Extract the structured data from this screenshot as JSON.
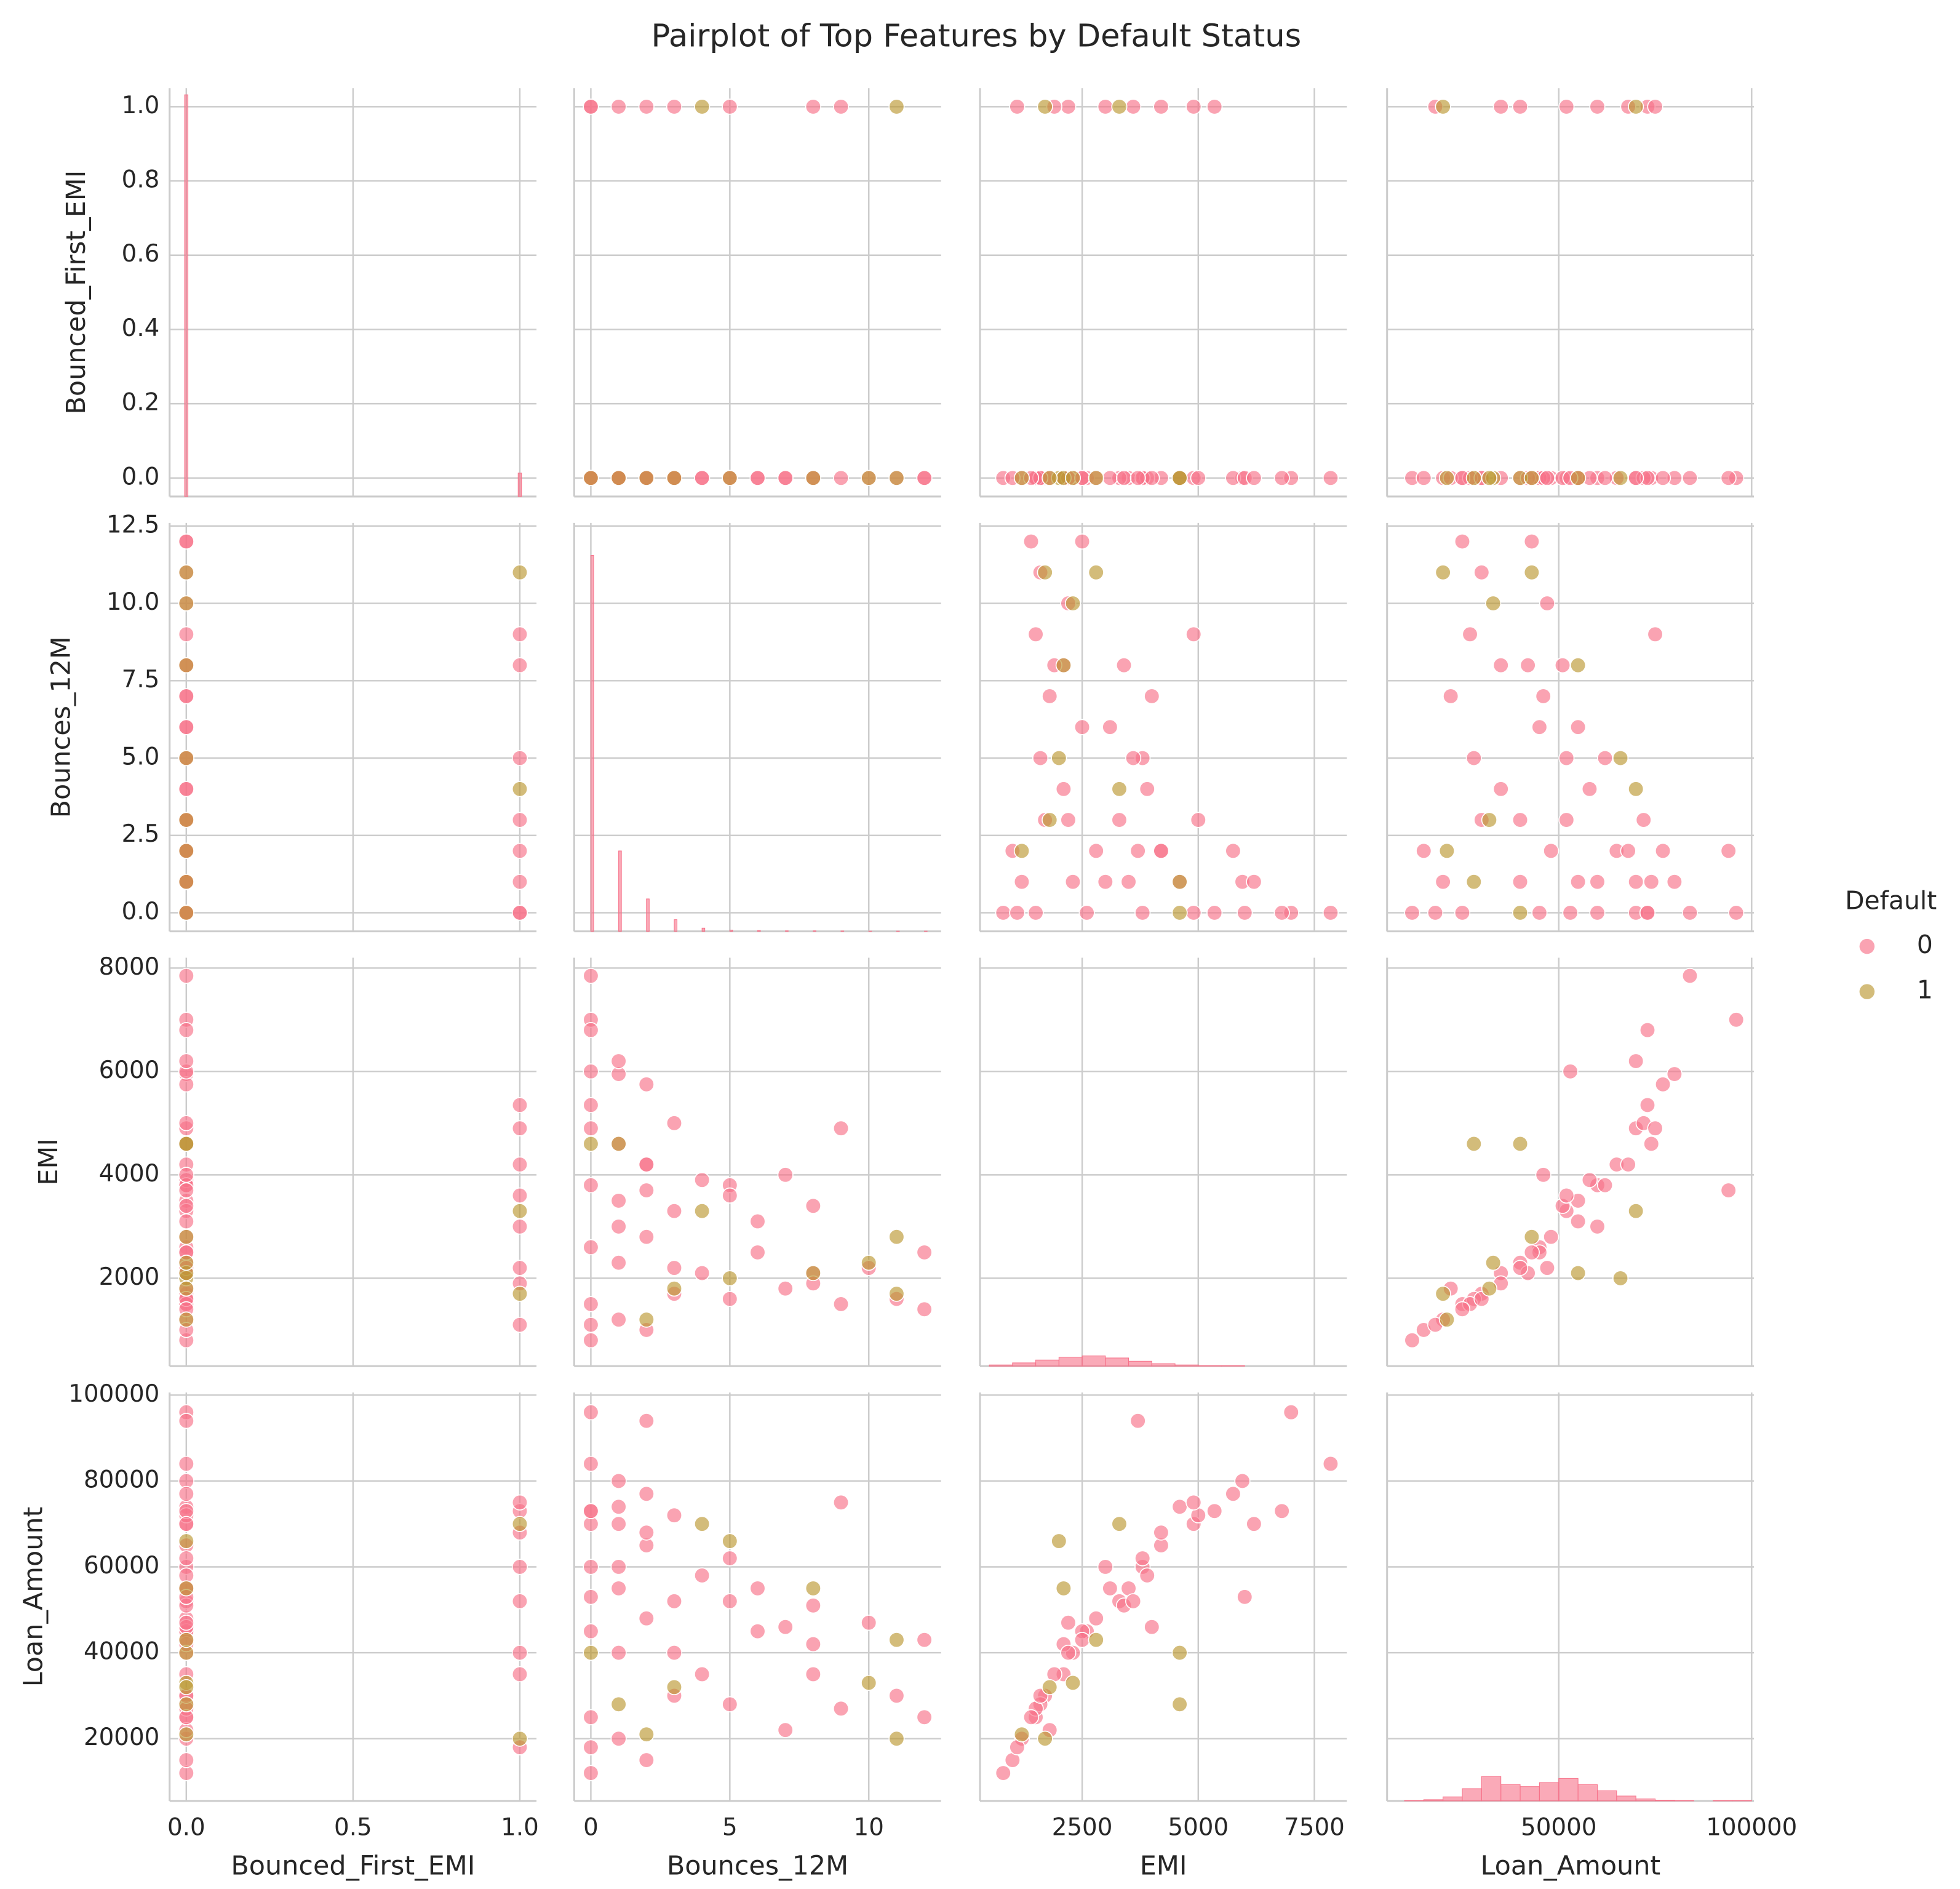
{
  "chart_data": {
    "type": "pairplot",
    "title": "Pairplot of Top Features by Default Status",
    "grid": true,
    "legend": {
      "title": "Default",
      "position": "right"
    },
    "variables": [
      {
        "name": "Bounced_First_EMI",
        "lim": [
          -0.05,
          1.05
        ],
        "xticks": [
          {
            "value": 0,
            "label": "0.0"
          },
          {
            "value": 0.5,
            "label": "0.5"
          },
          {
            "value": 1,
            "label": "1.0"
          }
        ],
        "yticks": [
          {
            "value": 0,
            "label": "0.0"
          },
          0.2,
          0.4,
          0.6,
          0.8,
          {
            "value": 1,
            "label": "1.0"
          }
        ]
      },
      {
        "name": "Bounces_12M",
        "lim": [
          -0.6,
          12.6
        ],
        "xticks": [
          0,
          5,
          10
        ],
        "yticks": [
          {
            "value": 0,
            "label": "0.0"
          },
          2.5,
          {
            "value": 5,
            "label": "5.0"
          },
          7.5,
          {
            "value": 10,
            "label": "10.0"
          },
          12.5
        ]
      },
      {
        "name": "EMI",
        "lim": [
          300,
          8200
        ],
        "xticks": [
          2500,
          5000,
          7500
        ],
        "yticks": [
          2000,
          4000,
          6000,
          8000
        ]
      },
      {
        "name": "Loan_Amount",
        "lim": [
          5500,
          100600
        ],
        "xticks": [
          50000,
          100000
        ],
        "yticks": [
          20000,
          40000,
          60000,
          80000,
          100000
        ]
      }
    ],
    "histograms": [
      {
        "bins": [
          -0.005,
          0.005,
          0.995,
          1.005
        ],
        "counts": [
          6000,
          0,
          350
        ],
        "ylim": [
          0,
          6100
        ]
      },
      {
        "bins": [
          0,
          0.1,
          1,
          1.1,
          2,
          2.1,
          3,
          3.1,
          4,
          4.1,
          5,
          5.1,
          6,
          6.1,
          7,
          7.1,
          8,
          8.1,
          9,
          9.1,
          10,
          10.1,
          11,
          11.1,
          12,
          12.1
        ],
        "counts": [
          2900,
          0,
          620,
          0,
          250,
          0,
          90,
          0,
          25,
          0,
          10,
          0,
          6,
          0,
          4,
          0,
          4,
          0,
          3,
          0,
          2,
          0,
          2,
          0,
          2
        ],
        "ylim": [
          0,
          3150
        ]
      },
      {
        "bins": [
          500,
          1000,
          1500,
          2000,
          2500,
          3000,
          3500,
          4000,
          4500,
          5000,
          5500,
          6000,
          6500,
          7000,
          7500,
          8000
        ],
        "counts": [
          3,
          8,
          15,
          22,
          25,
          20,
          12,
          6,
          3,
          1,
          1,
          0,
          0,
          0,
          0
        ],
        "ylim": [
          0,
          1000
        ]
      },
      {
        "bins": [
          10000,
          15000,
          20000,
          25000,
          30000,
          35000,
          40000,
          45000,
          50000,
          55000,
          60000,
          65000,
          70000,
          75000,
          80000,
          85000,
          90000,
          95000,
          100000
        ],
        "counts": [
          1,
          3,
          10,
          30,
          60,
          40,
          35,
          45,
          55,
          40,
          25,
          12,
          5,
          2,
          1,
          0,
          1,
          1
        ],
        "ylim": [
          0,
          1000
        ]
      }
    ],
    "series": [
      {
        "name": "0",
        "color": "#f77189",
        "values": [
          [
            0,
            0,
            0,
            0,
            0,
            0,
            0,
            0,
            0,
            0,
            0,
            0,
            0,
            0,
            0,
            0,
            0,
            0,
            0,
            0,
            0,
            0,
            0,
            0,
            0,
            0,
            0,
            0,
            0,
            0,
            0,
            0,
            0,
            0,
            1,
            1,
            1,
            1,
            1,
            1,
            1,
            1,
            0,
            0,
            0,
            0
          ],
          [
            0,
            0,
            0,
            0,
            0,
            0,
            0,
            1,
            1,
            1,
            1,
            1,
            2,
            2,
            2,
            2,
            3,
            3,
            3,
            4,
            4,
            5,
            5,
            6,
            6,
            7,
            7,
            8,
            8,
            9,
            10,
            11,
            12,
            12,
            0,
            0,
            1,
            2,
            3,
            5,
            8,
            9,
            0,
            0,
            1,
            2
          ],
          [
            800,
            1500,
            2600,
            3800,
            4900,
            7850,
            7000,
            1200,
            2300,
            3500,
            4600,
            5950,
            1000,
            2800,
            4200,
            5750,
            1700,
            3300,
            5000,
            2100,
            3900,
            1600,
            3800,
            2500,
            3100,
            1800,
            4000,
            2100,
            3400,
            1500,
            2200,
            1600,
            1400,
            2500,
            5350,
            1100,
            3000,
            4200,
            2200,
            3600,
            1900,
            4900,
            6800,
            6000,
            6200,
            3700
          ],
          [
            12000,
            25000,
            45000,
            60000,
            70000,
            84000,
            96000,
            20000,
            40000,
            55000,
            74000,
            80000,
            15000,
            48000,
            65000,
            77000,
            30000,
            52000,
            72000,
            35000,
            58000,
            28000,
            62000,
            45000,
            55000,
            22000,
            46000,
            42000,
            51000,
            27000,
            47000,
            30000,
            25000,
            43000,
            73000,
            18000,
            60000,
            68000,
            40000,
            52000,
            35000,
            75000,
            73000,
            53000,
            70000,
            94000
          ]
        ]
      },
      {
        "name": "1",
        "color": "#bb9832",
        "values": [
          [
            0,
            0,
            0,
            0,
            0,
            0,
            1,
            1,
            0,
            0
          ],
          [
            0,
            1,
            5,
            8,
            11,
            10,
            11,
            4,
            3,
            2
          ],
          [
            4600,
            4600,
            2000,
            2100,
            2800,
            2300,
            1700,
            3300,
            1800,
            1200
          ],
          [
            40000,
            28000,
            66000,
            55000,
            43000,
            33000,
            20000,
            70000,
            32000,
            21000
          ]
        ]
      }
    ]
  }
}
